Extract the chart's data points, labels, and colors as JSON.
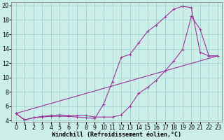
{
  "background_color": "#cceee8",
  "grid_color": "#99cccc",
  "line_color": "#993399",
  "marker_color": "#993399",
  "xlabel": "Windchill (Refroidissement éolien,°C)",
  "xlabel_fontsize": 6.0,
  "tick_fontsize": 5.8,
  "xlim_min": -0.5,
  "xlim_max": 23.5,
  "ylim_min": 3.8,
  "ylim_max": 20.5,
  "yticks": [
    4,
    6,
    8,
    10,
    12,
    14,
    16,
    18,
    20
  ],
  "xticks": [
    0,
    1,
    2,
    3,
    4,
    5,
    6,
    7,
    8,
    9,
    10,
    11,
    12,
    13,
    14,
    15,
    16,
    17,
    18,
    19,
    20,
    21,
    22,
    23
  ],
  "curve1_x": [
    0,
    1,
    2,
    3,
    4,
    5,
    6,
    7,
    8,
    9,
    10,
    11,
    12,
    13,
    14,
    15,
    16,
    17,
    18,
    19,
    20,
    21,
    22,
    23
  ],
  "curve1_y": [
    5.0,
    4.1,
    4.4,
    4.5,
    4.6,
    4.6,
    4.6,
    4.5,
    4.4,
    4.3,
    6.3,
    9.4,
    12.8,
    13.2,
    14.8,
    16.4,
    17.3,
    18.4,
    19.5,
    19.9,
    19.7,
    13.5,
    13.0,
    13.0
  ],
  "curve2_x": [
    0,
    1,
    2,
    3,
    4,
    5,
    6,
    7,
    8,
    9,
    10,
    11,
    12,
    13,
    14,
    15,
    16,
    17,
    18,
    19,
    20,
    21,
    22,
    23
  ],
  "curve2_y": [
    5.0,
    4.1,
    4.4,
    4.6,
    4.7,
    4.8,
    4.7,
    4.7,
    4.7,
    4.5,
    4.5,
    4.5,
    4.8,
    6.0,
    7.8,
    8.6,
    9.6,
    10.9,
    12.3,
    13.9,
    18.5,
    16.7,
    13.0,
    13.0
  ],
  "curve3_x": [
    0,
    23
  ],
  "curve3_y": [
    5.0,
    13.0
  ]
}
